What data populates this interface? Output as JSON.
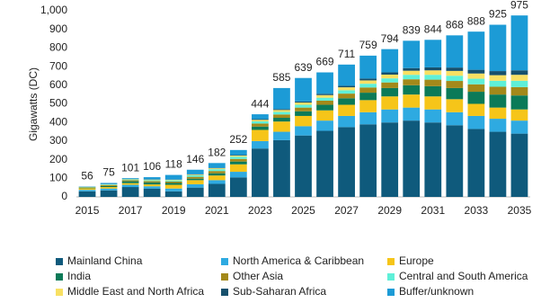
{
  "chart_data": {
    "type": "stacked_bar",
    "y_axis_label": "Gigawatts (DC)",
    "categories": [
      "2015",
      null,
      "2017",
      null,
      "2019",
      null,
      "2021",
      null,
      "2023",
      null,
      "2025",
      null,
      "2027",
      null,
      "2029",
      null,
      "2031",
      null,
      "2033",
      null,
      "2035"
    ],
    "totals": [
      56,
      75,
      101,
      106,
      118,
      146,
      182,
      252,
      444,
      585,
      639,
      669,
      711,
      759,
      794,
      839,
      844,
      868,
      888,
      925,
      975
    ],
    "series": [
      {
        "name": "Mainland China",
        "color": "#0f5a7c",
        "values": [
          30,
          35,
          53,
          45,
          30,
          50,
          70,
          105,
          260,
          305,
          330,
          355,
          375,
          390,
          400,
          410,
          400,
          385,
          365,
          350,
          340
        ]
      },
      {
        "name": "North America & Caribbean",
        "color": "#2eaae1",
        "values": [
          8,
          10,
          12,
          12,
          15,
          18,
          20,
          30,
          40,
          45,
          50,
          55,
          60,
          65,
          70,
          70,
          70,
          70,
          70,
          70,
          70
        ]
      },
      {
        "name": "Europe",
        "color": "#f6c519",
        "values": [
          8,
          8,
          9,
          10,
          20,
          22,
          25,
          40,
          60,
          55,
          55,
          55,
          60,
          65,
          70,
          70,
          70,
          70,
          65,
          60,
          60
        ]
      },
      {
        "name": "India",
        "color": "#0b7a58",
        "values": [
          2,
          5,
          10,
          11,
          10,
          8,
          12,
          15,
          18,
          20,
          25,
          30,
          35,
          40,
          45,
          50,
          55,
          60,
          65,
          70,
          75
        ]
      },
      {
        "name": "Other Asia",
        "color": "#a3891a",
        "values": [
          3,
          5,
          6,
          7,
          8,
          10,
          12,
          14,
          16,
          18,
          20,
          22,
          25,
          28,
          30,
          32,
          35,
          38,
          40,
          42,
          45
        ]
      },
      {
        "name": "Central and South America",
        "color": "#5ff0d8",
        "values": [
          2,
          3,
          4,
          5,
          6,
          8,
          10,
          12,
          12,
          14,
          15,
          16,
          18,
          20,
          22,
          24,
          26,
          28,
          30,
          32,
          34
        ]
      },
      {
        "name": "Middle East and North Africa",
        "color": "#f8e063",
        "values": [
          1,
          2,
          2,
          3,
          3,
          4,
          5,
          6,
          8,
          10,
          12,
          14,
          16,
          18,
          20,
          22,
          24,
          26,
          28,
          30,
          32
        ]
      },
      {
        "name": "Sub-Saharan Africa",
        "color": "#16506c",
        "values": [
          0,
          1,
          1,
          1,
          1,
          2,
          2,
          3,
          4,
          5,
          6,
          7,
          8,
          10,
          12,
          14,
          16,
          18,
          20,
          22,
          24
        ]
      },
      {
        "name": "Buffer/unknown",
        "color": "#1c9bd6",
        "values": [
          2,
          6,
          4,
          12,
          25,
          24,
          26,
          27,
          26,
          113,
          126,
          115,
          114,
          123,
          125,
          147,
          148,
          173,
          205,
          249,
          295
        ]
      }
    ],
    "ylim": [
      0,
      1000
    ],
    "yticks": [
      0,
      100,
      200,
      300,
      400,
      500,
      600,
      700,
      800,
      900,
      {
        "value": 1000,
        "label": "1,000"
      }
    ],
    "legend_position": "bottom"
  }
}
